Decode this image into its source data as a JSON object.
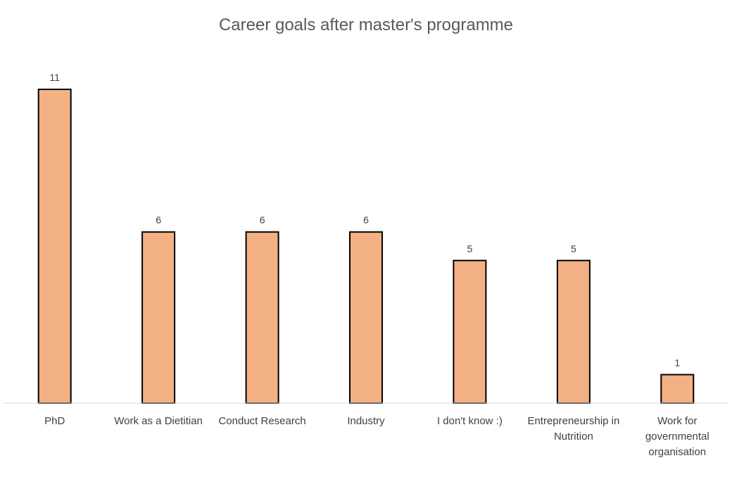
{
  "chart_data": {
    "type": "bar",
    "title": "Career goals after master's programme",
    "xlabel": "",
    "ylabel": "",
    "categories": [
      [
        "PhD"
      ],
      [
        "Work as a Dietitian"
      ],
      [
        "Conduct Research"
      ],
      [
        "Industry"
      ],
      [
        "I don't know :)"
      ],
      [
        "Entrepreneurship in",
        "Nutrition"
      ],
      [
        "Work for",
        "governmental",
        "organisation"
      ]
    ],
    "values": [
      11,
      6,
      6,
      6,
      5,
      5,
      1
    ],
    "ylim": [
      0,
      11
    ],
    "grid": false,
    "legend": "none",
    "data_labels": true,
    "colors": {
      "bar_fill": "#F4B183",
      "bar_stroke": "#000000",
      "axis": "#D9D9D9",
      "title": "#595959",
      "text": "#404040"
    }
  }
}
